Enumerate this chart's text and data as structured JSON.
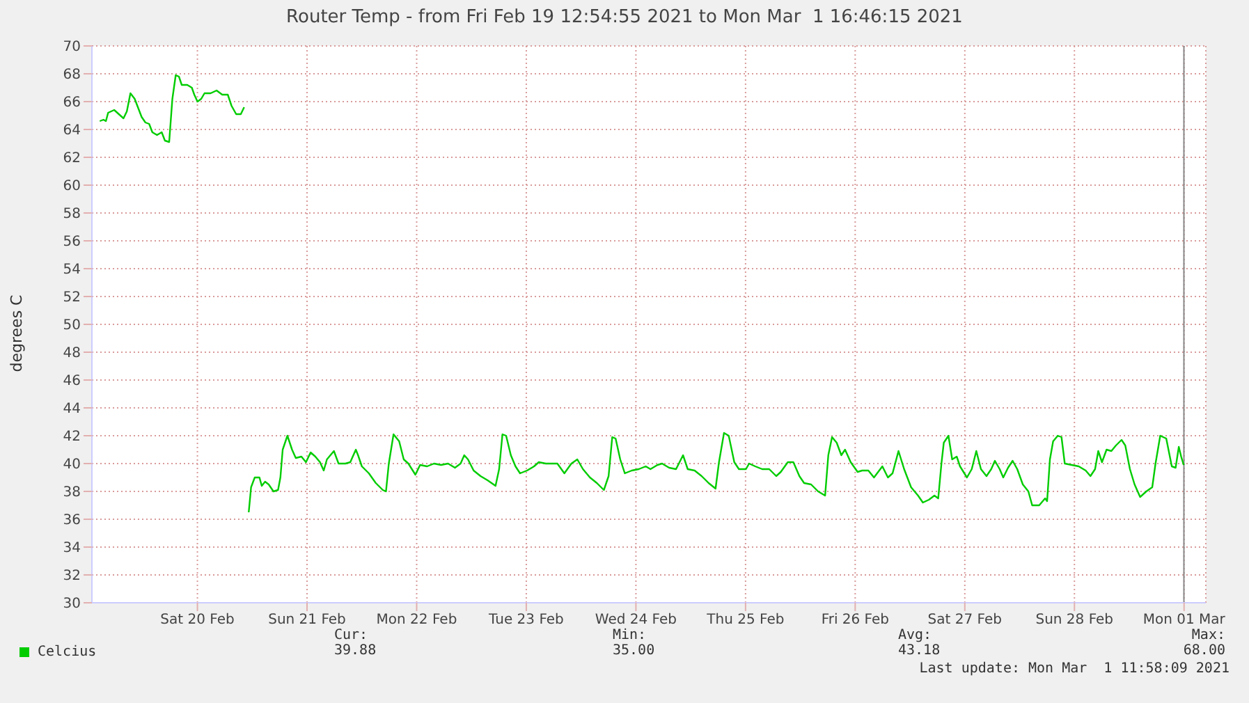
{
  "chart_data": {
    "type": "line",
    "title": "Router Temp - from Fri Feb 19 12:54:55 2021 to Mon Mar  1 16:46:15 2021",
    "ylabel": "degrees C",
    "x": [
      "2021-02-19T14:37",
      "2021-02-19T15:26",
      "2021-02-19T15:58",
      "2021-02-19T16:27",
      "2021-02-19T17:47",
      "2021-02-19T18:48",
      "2021-02-19T19:49",
      "2021-02-19T20:33",
      "2021-02-19T21:20",
      "2021-02-19T22:16",
      "2021-02-19T23:05",
      "2021-02-19T23:47",
      "2021-02-20T00:37",
      "2021-02-20T01:26",
      "2021-02-20T02:08",
      "2021-02-20T03:09",
      "2021-02-20T04:11",
      "2021-02-20T04:53",
      "2021-02-20T05:49",
      "2021-02-20T06:31",
      "2021-02-20T07:15",
      "2021-02-20T07:57",
      "2021-02-20T08:34",
      "2021-02-20T09:47",
      "2021-02-20T10:47",
      "2021-02-20T11:19",
      "2021-02-20T12:01",
      "2021-02-20T12:50",
      "2021-02-20T13:33",
      "2021-02-20T14:53",
      "2021-02-20T16:12",
      "2021-02-20T17:26",
      "2021-02-20T18:39",
      "2021-02-20T19:28",
      "2021-02-20T20:29",
      "2021-02-20T21:30",
      "2021-02-20T22:14",
      "2021-02-20T22:45",
      "2021-02-20T23:14",
      "2021-02-20T23:45",
      "2021-02-21T00:33",
      "2021-02-21T01:35",
      "2021-02-21T02:05",
      "2021-02-21T02:49",
      "2021-02-21T03:36",
      "2021-02-21T04:39",
      "2021-02-21T05:39",
      "2021-02-21T06:10",
      "2021-02-21T06:40",
      "2021-02-21T07:42",
      "2021-02-21T08:43",
      "2021-02-21T09:32",
      "2021-02-21T10:46",
      "2021-02-21T11:46",
      "2021-02-21T12:47",
      "2021-02-21T13:49",
      "2021-02-21T14:50",
      "2021-02-21T15:39",
      "2021-02-21T16:21",
      "2021-02-21T17:53",
      "2021-02-21T18:54",
      "2021-02-21T20:25",
      "2021-02-21T21:28",
      "2021-02-21T22:41",
      "2021-02-21T23:10",
      "2021-02-22T00:00",
      "2021-02-22T01:32",
      "2021-02-22T03:03",
      "2021-02-22T04:35",
      "2021-02-22T05:17",
      "2021-02-22T05:54",
      "2021-02-22T06:56",
      "2021-02-22T08:10",
      "2021-02-22T09:10",
      "2021-02-22T10:11",
      "2021-02-22T11:43",
      "2021-02-22T12:45",
      "2021-02-22T14:17",
      "2021-02-22T15:48",
      "2021-02-22T17:20",
      "2021-02-22T18:52",
      "2021-02-22T20:23",
      "2021-02-22T21:37",
      "2021-02-22T22:25",
      "2021-02-22T23:14",
      "2021-02-23T00:28",
      "2021-02-23T01:59",
      "2021-02-23T03:31",
      "2021-02-23T05:16",
      "2021-02-23T06:03",
      "2021-02-23T06:47",
      "2021-02-23T07:35",
      "2021-02-23T08:37",
      "2021-02-23T09:38",
      "2021-02-23T10:38",
      "2021-02-23T12:10",
      "2021-02-23T13:42",
      "2021-02-23T14:44",
      "2021-02-23T16:16",
      "2021-02-23T18:48",
      "2021-02-23T20:20",
      "2021-02-23T21:52",
      "2021-02-23T23:10",
      "2021-02-24T00:24",
      "2021-02-24T01:56",
      "2021-02-24T03:27",
      "2021-02-24T04:59",
      "2021-02-24T06:01",
      "2021-02-24T06:49",
      "2021-02-24T07:33",
      "2021-02-24T08:34",
      "2021-02-24T09:34",
      "2021-02-24T11:06",
      "2021-02-24T12:38",
      "2021-02-24T14:09",
      "2021-02-24T15:11",
      "2021-02-24T16:43",
      "2021-02-24T17:44",
      "2021-02-24T19:16",
      "2021-02-24T20:47",
      "2021-02-24T22:19",
      "2021-02-24T23:20",
      "2021-02-25T00:51",
      "2021-02-25T02:23",
      "2021-02-25T03:55",
      "2021-02-25T05:26",
      "2021-02-25T06:11",
      "2021-02-25T07:17",
      "2021-02-25T08:19",
      "2021-02-25T09:32",
      "2021-02-25T10:33",
      "2021-02-25T12:05",
      "2021-02-25T12:47",
      "2021-02-25T14:07",
      "2021-02-25T15:39",
      "2021-02-25T17:11",
      "2021-02-25T18:43",
      "2021-02-25T19:43",
      "2021-02-25T21:15",
      "2021-02-25T22:28",
      "2021-02-25T23:47",
      "2021-02-26T00:49",
      "2021-02-26T02:21",
      "2021-02-26T03:53",
      "2021-02-26T05:25",
      "2021-02-26T06:07",
      "2021-02-26T06:56",
      "2021-02-26T07:57",
      "2021-02-26T08:58",
      "2021-02-26T09:47",
      "2021-02-26T11:01",
      "2021-02-26T12:32",
      "2021-02-26T13:32",
      "2021-02-26T14:53",
      "2021-02-26T16:07",
      "2021-02-26T17:57",
      "2021-02-26T19:10",
      "2021-02-26T20:11",
      "2021-02-26T21:29",
      "2021-02-26T22:43",
      "2021-02-27T00:14",
      "2021-02-27T01:46",
      "2021-02-27T02:49",
      "2021-02-27T04:08",
      "2021-02-27T05:21",
      "2021-02-27T06:11",
      "2021-02-27T06:53",
      "2021-02-27T07:24",
      "2021-02-27T08:25",
      "2021-02-27T09:14",
      "2021-02-27T10:14",
      "2021-02-27T10:57",
      "2021-02-27T12:28",
      "2021-02-27T13:31",
      "2021-02-27T14:31",
      "2021-02-27T15:32",
      "2021-02-27T16:45",
      "2021-02-27T17:47",
      "2021-02-27T18:35",
      "2021-02-27T19:38",
      "2021-02-27T20:25",
      "2021-02-27T21:28",
      "2021-02-27T22:28",
      "2021-02-27T23:29",
      "2021-02-28T00:42",
      "2021-02-28T01:55",
      "2021-02-28T02:45",
      "2021-02-28T04:17",
      "2021-02-28T05:35",
      "2021-02-28T06:01",
      "2021-02-28T06:38",
      "2021-02-28T07:20",
      "2021-02-28T08:21",
      "2021-02-28T09:10",
      "2021-02-28T09:53",
      "2021-02-28T11:24",
      "2021-02-28T12:56",
      "2021-02-28T14:28",
      "2021-02-28T15:30",
      "2021-02-28T16:31",
      "2021-02-28T17:13",
      "2021-02-28T18:02",
      "2021-02-28T19:02",
      "2021-02-28T20:05",
      "2021-02-28T21:05",
      "2021-02-28T22:19",
      "2021-02-28T23:08",
      "2021-03-01T00:09",
      "2021-03-01T01:10",
      "2021-03-01T02:23",
      "2021-03-01T03:44",
      "2021-03-01T05:02",
      "2021-03-01T05:45",
      "2021-03-01T06:47",
      "2021-03-01T08:06",
      "2021-03-01T09:19",
      "2021-03-01T10:09",
      "2021-03-01T10:51",
      "2021-03-01T11:22",
      "2021-03-01T11:55"
    ],
    "series": [
      {
        "name": "Celcius",
        "color": "#00cc00",
        "values": [
          64.6,
          64.7,
          64.6,
          65.2,
          65.4,
          65.1,
          64.8,
          65.3,
          66.6,
          66.2,
          65.5,
          64.9,
          64.5,
          64.4,
          63.8,
          63.6,
          63.8,
          63.2,
          63.1,
          66.2,
          67.9,
          67.8,
          67.2,
          67.2,
          67.0,
          66.5,
          66.0,
          66.2,
          66.6,
          66.6,
          66.8,
          66.5,
          66.5,
          65.7,
          65.1,
          65.1,
          65.6,
          null,
          36.5,
          38.3,
          39.0,
          39.0,
          38.4,
          38.7,
          38.5,
          38.0,
          38.1,
          39.0,
          41.0,
          42.0,
          41.0,
          40.4,
          40.5,
          40.1,
          40.8,
          40.5,
          40.1,
          39.5,
          40.3,
          40.9,
          40.0,
          40.0,
          40.1,
          41.0,
          40.6,
          39.8,
          39.3,
          38.6,
          38.1,
          38.0,
          40.0,
          42.1,
          41.6,
          40.3,
          40.0,
          39.2,
          39.9,
          39.8,
          40.0,
          39.9,
          40.0,
          39.7,
          40.0,
          40.6,
          40.3,
          39.5,
          39.1,
          38.8,
          38.4,
          39.6,
          42.1,
          42.0,
          40.6,
          39.8,
          39.3,
          39.5,
          39.8,
          40.1,
          40.0,
          40.0,
          39.3,
          40.0,
          40.3,
          39.6,
          39.0,
          38.6,
          38.1,
          39.1,
          41.9,
          41.8,
          40.3,
          39.3,
          39.5,
          39.6,
          39.8,
          39.6,
          39.9,
          40.0,
          39.7,
          39.6,
          40.6,
          39.6,
          39.5,
          39.1,
          38.6,
          38.2,
          40.1,
          42.2,
          42.0,
          40.1,
          39.6,
          39.6,
          40.0,
          39.8,
          39.6,
          39.6,
          39.1,
          39.4,
          40.1,
          40.1,
          39.1,
          38.6,
          38.5,
          38.0,
          37.7,
          40.6,
          41.9,
          41.5,
          40.6,
          41.0,
          40.1,
          39.4,
          39.5,
          39.5,
          39.0,
          39.8,
          39.0,
          39.3,
          40.9,
          39.6,
          38.3,
          37.7,
          37.2,
          37.4,
          37.7,
          37.5,
          40.0,
          41.5,
          42.0,
          40.3,
          40.5,
          39.8,
          39.0,
          39.6,
          40.9,
          39.6,
          39.1,
          39.6,
          40.2,
          39.6,
          39.0,
          39.7,
          40.2,
          39.6,
          38.5,
          38.0,
          37.0,
          37.0,
          37.5,
          37.3,
          40.3,
          41.6,
          42.0,
          41.9,
          40.0,
          39.9,
          39.8,
          39.5,
          39.1,
          39.6,
          40.9,
          40.1,
          41.0,
          40.9,
          41.3,
          41.7,
          41.3,
          39.6,
          38.5,
          37.6,
          38.0,
          38.3,
          40.0,
          42.0,
          41.8,
          39.8,
          39.7,
          41.2,
          40.5,
          39.9
        ]
      }
    ],
    "xlim": [
      "2021-02-19T12:54",
      "2021-03-01T16:46"
    ],
    "xticks": [
      {
        "value": "2021-02-20T12:00",
        "label": "Sat 20 Feb"
      },
      {
        "value": "2021-02-21T12:00",
        "label": "Sun 21 Feb"
      },
      {
        "value": "2021-02-22T12:00",
        "label": "Mon 22 Feb"
      },
      {
        "value": "2021-02-23T12:00",
        "label": "Tue 23 Feb"
      },
      {
        "value": "2021-02-24T12:00",
        "label": "Wed 24 Feb"
      },
      {
        "value": "2021-02-25T12:00",
        "label": "Thu 25 Feb"
      },
      {
        "value": "2021-02-26T12:00",
        "label": "Fri 26 Feb"
      },
      {
        "value": "2021-02-27T12:00",
        "label": "Sat 27 Feb"
      },
      {
        "value": "2021-02-28T12:00",
        "label": "Sun 28 Feb"
      },
      {
        "value": "2021-03-01T12:00",
        "label": "Mon 01 Mar"
      }
    ],
    "ylim": [
      30,
      70
    ],
    "yticks": [
      30,
      32,
      34,
      36,
      38,
      40,
      42,
      44,
      46,
      48,
      50,
      52,
      54,
      56,
      58,
      60,
      62,
      64,
      66,
      68,
      70
    ],
    "ref_lines": [
      {
        "axis": "x",
        "value": "2021-03-01T11:58",
        "color": "#888888"
      }
    ],
    "grid": true,
    "legend": "bottom left",
    "marker": "none",
    "line_style": "solid",
    "annotations": [
      "Cur:",
      "39.88",
      "Min:",
      "35.00",
      "Avg:",
      "43.18",
      "Max:",
      "68.00",
      "Last update: Mon Mar  1 11:58:09 2021"
    ]
  }
}
